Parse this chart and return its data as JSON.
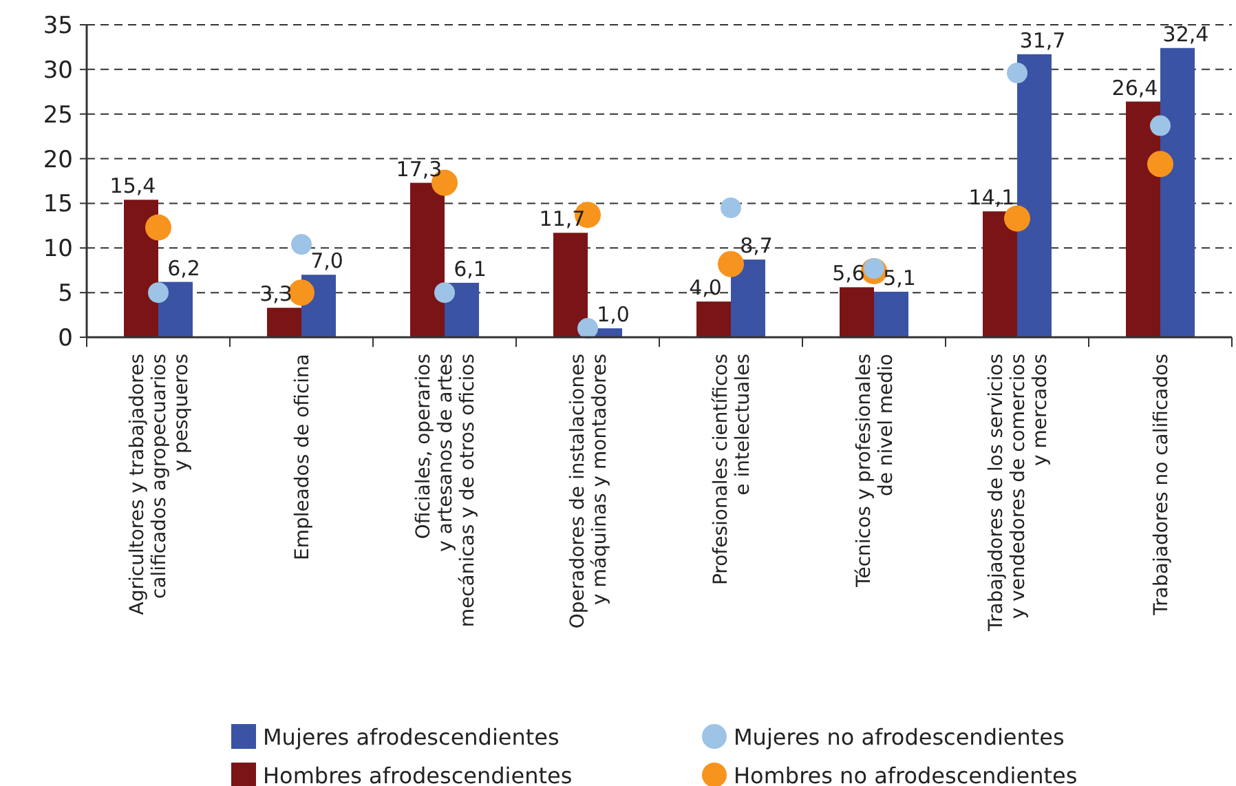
{
  "chart_data": {
    "type": "bar",
    "categories": [
      "Agricultores y trabajadores\ncalificados agropecuarios\ny pesqueros",
      "Empleados de oficina",
      "Oficiales, operarios\ny artesanos de artes\nmecánicas y de otros oficios",
      "Operadores de instalaciones\ny máquinas y montadores",
      "Profesionales científicos\ne intelectuales",
      "Técnicos y profesionales\nde nivel medio",
      "Trabajadores de los servicios\ny vendedores de comercios\ny mercados",
      "Trabajadores no calificados"
    ],
    "series": [
      {
        "name": "Hombres afrodescendientes",
        "color": "#7b1416",
        "values": [
          15.4,
          3.3,
          17.3,
          11.7,
          4.0,
          5.6,
          14.1,
          26.4
        ],
        "value_labels": [
          "15,4",
          "3,3",
          "17,3",
          "11,7",
          "4,0",
          "5,6",
          "14,1",
          "26,4"
        ]
      },
      {
        "name": "Mujeres afrodescendientes",
        "color": "#3a53a4",
        "values": [
          6.2,
          7.0,
          6.1,
          1.0,
          8.7,
          5.1,
          31.7,
          32.4
        ],
        "value_labels": [
          "6,2",
          "7,0",
          "6,1",
          "1,0",
          "8,7",
          "5,1",
          "31,7",
          "32,4"
        ]
      },
      {
        "name": "Hombres no afrodescendientes",
        "type": "scatter",
        "color": "#f7941d",
        "x": [
          "Agricultores y trabajadores\ncalificados agropecuarios\ny pesqueros",
          "Empleados de oficina",
          "Oficiales, operarios\ny artesanos de artes\nmecánicas y de otros oficios",
          "Operadores de instalaciones\ny máquinas y montadores",
          "Profesionales científicos\ne intelectuales",
          "Técnicos y profesionales\nde nivel medio",
          "Trabajadores de los servicios\ny vendedores de comercios\ny mercados",
          "Trabajadores no calificados"
        ],
        "values": [
          12.3,
          5.0,
          17.3,
          13.7,
          8.2,
          7.4,
          13.3,
          19.4
        ]
      },
      {
        "name": "Mujeres no afrodescendientes",
        "type": "scatter",
        "color": "#9dc3e6",
        "x": [
          "Agricultores y trabajadores\ncalificados agropecuarios\ny pesqueros",
          "Empleados de oficina",
          "Oficiales, operarios\ny artesanos de artes\nmecánicas y de otros oficios",
          "Operadores de instalaciones\ny máquinas y montadores",
          "Profesionales científicos\ne intelectuales",
          "Técnicos y profesionales\nde nivel medio",
          "Trabajadores de los servicios\ny vendedores de comercios\ny mercados",
          "Trabajadores no calificados"
        ],
        "values": [
          5.0,
          10.4,
          5.0,
          1.0,
          14.5,
          7.7,
          29.6,
          23.7
        ]
      }
    ],
    "ylim": [
      0,
      35
    ],
    "yticks": [
      0,
      5,
      10,
      15,
      20,
      25,
      30,
      35
    ],
    "grid": "y",
    "legend": "bottom",
    "marker": "circle"
  }
}
